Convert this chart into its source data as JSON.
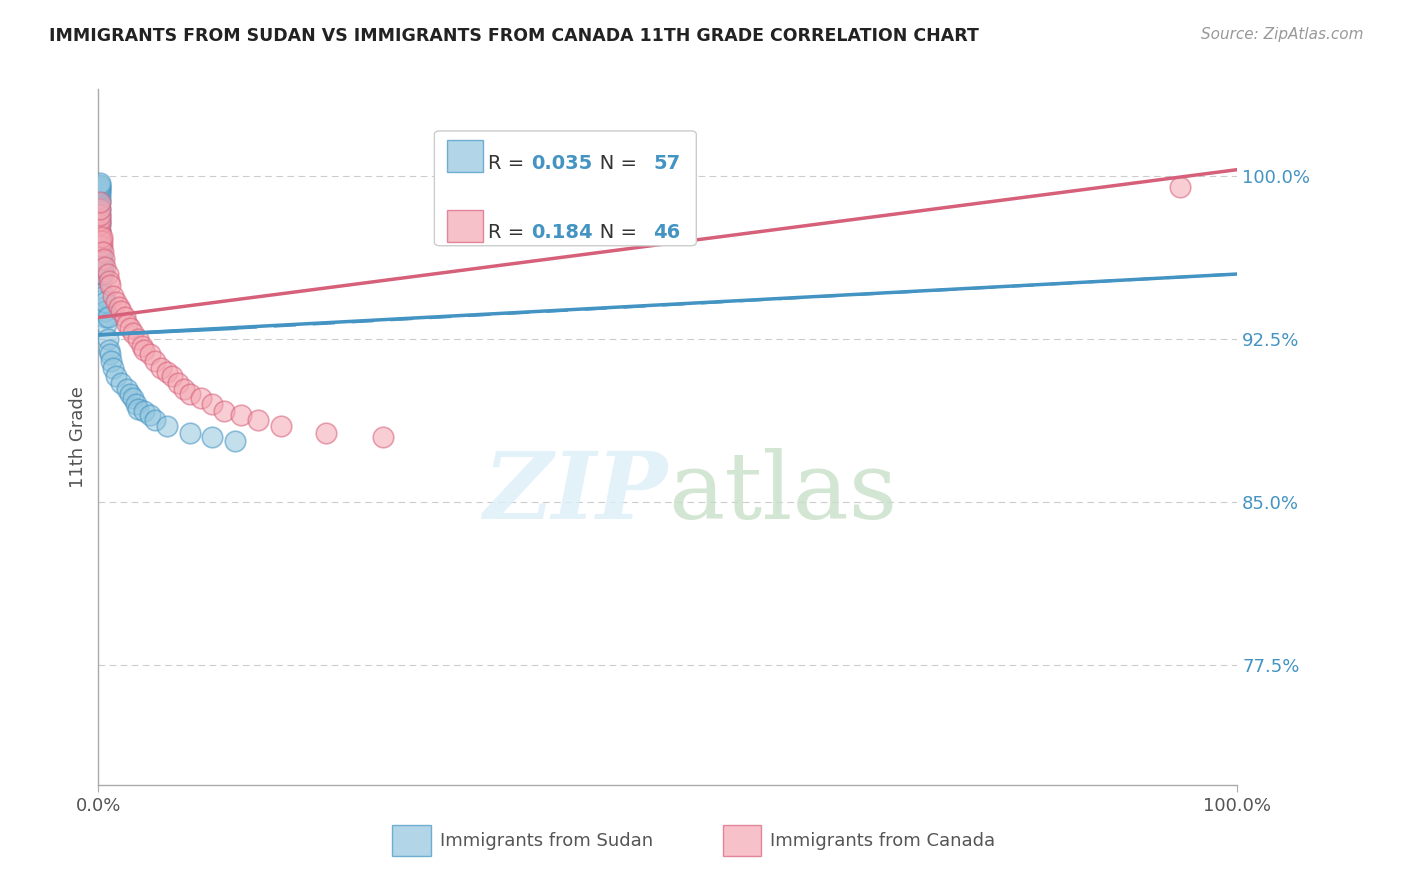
{
  "title": "IMMIGRANTS FROM SUDAN VS IMMIGRANTS FROM CANADA 11TH GRADE CORRELATION CHART",
  "source": "Source: ZipAtlas.com",
  "ylabel": "11th Grade",
  "right_yticks": [
    0.775,
    0.85,
    0.925,
    1.0
  ],
  "right_ytick_labels": [
    "77.5%",
    "85.0%",
    "92.5%",
    "100.0%"
  ],
  "sudan_R": 0.035,
  "sudan_N": 57,
  "canada_R": 0.184,
  "canada_N": 46,
  "blue_color": "#92c5de",
  "pink_color": "#f4a7b2",
  "blue_edge_color": "#4393c3",
  "pink_edge_color": "#d6607a",
  "blue_line_color": "#4393c3",
  "pink_line_color": "#d6607a",
  "xlim": [
    0.0,
    1.0
  ],
  "ylim": [
    0.72,
    1.04
  ],
  "background_color": "#ffffff",
  "grid_color": "#cccccc",
  "sudan_x": [
    0.001,
    0.001,
    0.001,
    0.001,
    0.001,
    0.001,
    0.001,
    0.001,
    0.001,
    0.001,
    0.001,
    0.001,
    0.001,
    0.001,
    0.001,
    0.001,
    0.001,
    0.001,
    0.001,
    0.002,
    0.002,
    0.002,
    0.002,
    0.002,
    0.002,
    0.002,
    0.003,
    0.003,
    0.003,
    0.004,
    0.004,
    0.005,
    0.005,
    0.006,
    0.006,
    0.006,
    0.007,
    0.008,
    0.008,
    0.009,
    0.01,
    0.011,
    0.013,
    0.015,
    0.02,
    0.025,
    0.028,
    0.03,
    0.033,
    0.035,
    0.04,
    0.045,
    0.05,
    0.06,
    0.08,
    0.1,
    0.12
  ],
  "sudan_y": [
    0.955,
    0.96,
    0.965,
    0.968,
    0.97,
    0.972,
    0.975,
    0.978,
    0.98,
    0.982,
    0.985,
    0.988,
    0.99,
    0.992,
    0.993,
    0.994,
    0.995,
    0.996,
    0.997,
    0.952,
    0.955,
    0.958,
    0.96,
    0.962,
    0.965,
    0.968,
    0.955,
    0.958,
    0.962,
    0.955,
    0.958,
    0.94,
    0.945,
    0.935,
    0.938,
    0.942,
    0.932,
    0.925,
    0.935,
    0.92,
    0.918,
    0.915,
    0.912,
    0.908,
    0.905,
    0.902,
    0.9,
    0.898,
    0.895,
    0.893,
    0.892,
    0.89,
    0.888,
    0.885,
    0.882,
    0.88,
    0.878
  ],
  "canada_x": [
    0.001,
    0.001,
    0.001,
    0.001,
    0.001,
    0.001,
    0.001,
    0.001,
    0.001,
    0.003,
    0.003,
    0.003,
    0.004,
    0.005,
    0.006,
    0.008,
    0.009,
    0.01,
    0.013,
    0.015,
    0.018,
    0.02,
    0.023,
    0.025,
    0.028,
    0.03,
    0.035,
    0.038,
    0.04,
    0.045,
    0.05,
    0.055,
    0.06,
    0.065,
    0.07,
    0.075,
    0.08,
    0.09,
    0.1,
    0.11,
    0.125,
    0.14,
    0.16,
    0.2,
    0.25,
    0.95
  ],
  "canada_y": [
    0.97,
    0.972,
    0.973,
    0.975,
    0.978,
    0.98,
    0.982,
    0.985,
    0.988,
    0.968,
    0.97,
    0.972,
    0.965,
    0.962,
    0.958,
    0.955,
    0.952,
    0.95,
    0.945,
    0.942,
    0.94,
    0.938,
    0.935,
    0.932,
    0.93,
    0.928,
    0.925,
    0.922,
    0.92,
    0.918,
    0.915,
    0.912,
    0.91,
    0.908,
    0.905,
    0.902,
    0.9,
    0.898,
    0.895,
    0.892,
    0.89,
    0.888,
    0.885,
    0.882,
    0.88,
    0.995
  ],
  "sudan_trend_x": [
    0.0,
    1.0
  ],
  "sudan_trend_y": [
    0.927,
    0.955
  ],
  "canada_trend_x": [
    0.0,
    1.0
  ],
  "canada_trend_y": [
    0.935,
    1.003
  ]
}
